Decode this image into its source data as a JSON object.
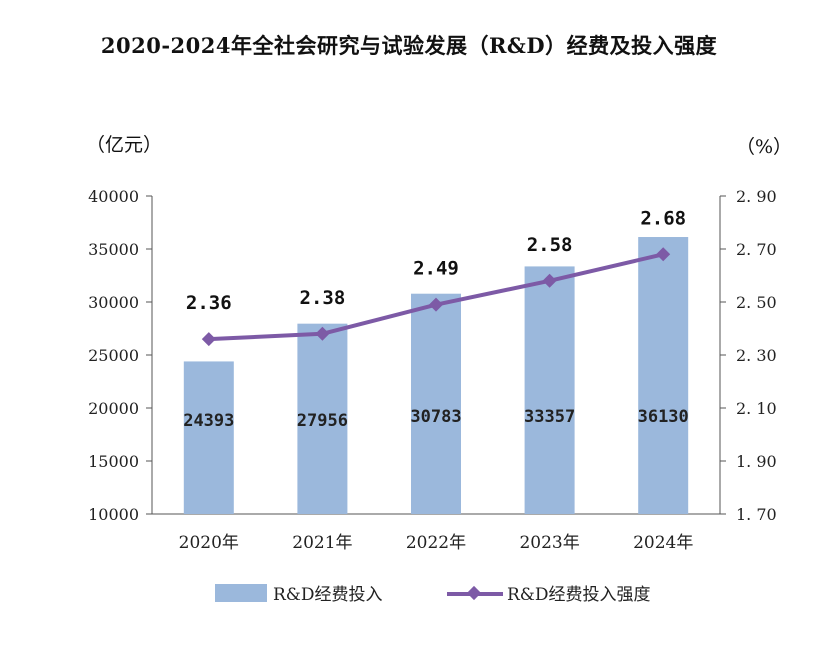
{
  "chart_data": {
    "type": "bar+line",
    "title": "2020-2024年全社会研究与试验发展（R&D）经费及投入强度",
    "left_unit": "（亿元）",
    "right_unit": "（%）",
    "categories": [
      "2020年",
      "2021年",
      "2022年",
      "2023年",
      "2024年"
    ],
    "series": [
      {
        "name": "R&D经费投入",
        "type": "bar",
        "axis": "left",
        "values": [
          24393,
          27956,
          30783,
          33357,
          36130
        ],
        "labels": [
          "24393",
          "27956",
          "30783",
          "33357",
          "36130"
        ]
      },
      {
        "name": "R&D经费投入强度",
        "type": "line",
        "axis": "right",
        "values": [
          2.36,
          2.38,
          2.49,
          2.58,
          2.68
        ],
        "labels": [
          "2.36",
          "2.38",
          "2.49",
          "2.58",
          "2.68"
        ]
      }
    ],
    "y_left": {
      "min": 10000,
      "max": 40000,
      "ticks": [
        "10000",
        "15000",
        "20000",
        "25000",
        "30000",
        "35000",
        "40000"
      ]
    },
    "y_right": {
      "min": 1.7,
      "max": 2.9,
      "ticks": [
        "1. 70",
        "1. 90",
        "2. 10",
        "2. 30",
        "2. 50",
        "2. 70",
        "2. 90"
      ]
    },
    "legend_position": "bottom",
    "colors": {
      "bar": "#9bb8dc",
      "line": "#7d5aa6",
      "axis": "#555555"
    }
  }
}
